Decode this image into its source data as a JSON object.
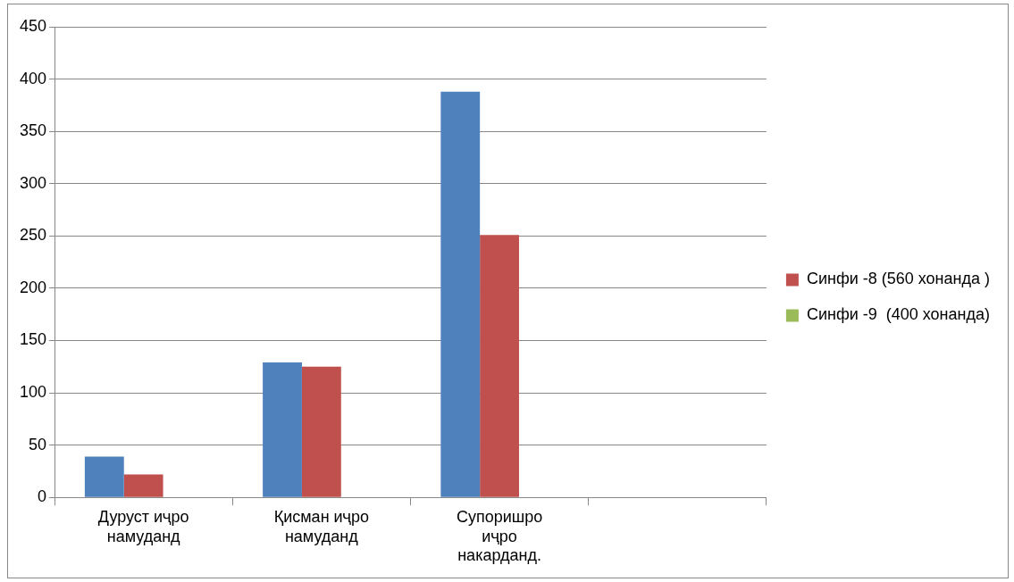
{
  "chart_data": {
    "type": "bar",
    "categories": [
      "Дуруст иҷро намуданд",
      "Қисман иҷро намуданд",
      "Супоришро иҷро накарданд.",
      null
    ],
    "series": [
      {
        "color": "#4f81bd",
        "values": [
          39,
          129,
          388,
          null
        ]
      },
      {
        "name": "Синфи -8 (560 хонанда )",
        "color": "#c0504d",
        "values": [
          22,
          125,
          251,
          null
        ]
      },
      {
        "name": "Синфи -9  (400 хонанда)",
        "color": "#9bbb59",
        "values": [
          null,
          null,
          null,
          null
        ]
      }
    ],
    "ylim": [
      0,
      450
    ],
    "yticks": [
      0,
      50,
      100,
      150,
      200,
      250,
      300,
      350,
      400,
      450
    ],
    "grid": "y",
    "legend": "right"
  }
}
